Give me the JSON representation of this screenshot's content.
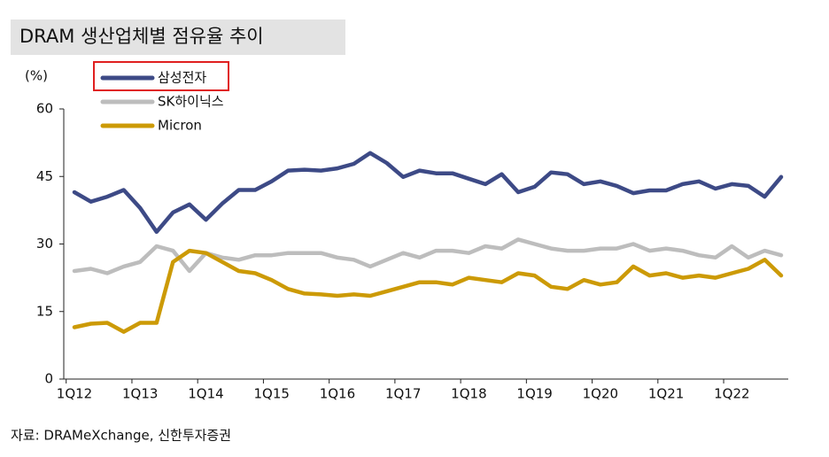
{
  "chart_data": {
    "type": "line",
    "title": "DRAM 생산업체별 점유율 추이",
    "y_label": "(%)",
    "source": "자료: DRAMeXchange, 신한투자증권",
    "categories": [
      "1Q12",
      null,
      null,
      null,
      "1Q13",
      null,
      null,
      null,
      "1Q14",
      null,
      null,
      null,
      "1Q15",
      null,
      null,
      null,
      "1Q16",
      null,
      null,
      null,
      "1Q17",
      null,
      null,
      null,
      "1Q18",
      null,
      null,
      null,
      "1Q19",
      null,
      null,
      null,
      "1Q20",
      null,
      null,
      null,
      "1Q21",
      null,
      null,
      null,
      "1Q22",
      null,
      null,
      null
    ],
    "series": [
      {
        "name": "삼성전자",
        "color": "#3d4a86",
        "values": [
          41.5,
          39.4,
          40.5,
          42,
          38,
          32.7,
          37,
          38.8,
          35.4,
          39,
          42,
          42,
          43.9,
          46.3,
          46.5,
          46.3,
          46.8,
          47.8,
          50.2,
          48,
          44.9,
          46.3,
          45.7,
          45.7,
          44.5,
          43.3,
          45.5,
          41.5,
          42.7,
          45.9,
          45.5,
          43.3,
          43.9,
          42.9,
          41.3,
          41.9,
          41.9,
          43.3,
          43.9,
          42.3,
          43.3,
          42.9,
          40.5,
          44.9
        ]
      },
      {
        "name": "SK하이닉스",
        "color": "#bdbdbd",
        "values": [
          24,
          24.5,
          23.5,
          25,
          26,
          29.5,
          28.5,
          24,
          28,
          27,
          26.5,
          27.5,
          27.5,
          28,
          28,
          28,
          27,
          26.5,
          25,
          26.5,
          28,
          27,
          28.5,
          28.5,
          28,
          29.5,
          29,
          31,
          30,
          29,
          28.5,
          28.5,
          29,
          29,
          30,
          28.5,
          29,
          28.5,
          27.5,
          27,
          29.5,
          27,
          28.5,
          27.5
        ]
      },
      {
        "name": "Micron",
        "color": "#cc9a06",
        "values": [
          11.5,
          12.3,
          12.5,
          10.5,
          12.5,
          12.5,
          26,
          28.5,
          28,
          26,
          24,
          23.5,
          22,
          20,
          19,
          18.8,
          18.5,
          18.8,
          18.5,
          19.5,
          20.5,
          21.5,
          21.5,
          21,
          22.5,
          22,
          21.5,
          23.5,
          23,
          20.5,
          20,
          22,
          21,
          21.5,
          25,
          23,
          23.5,
          22.5,
          23,
          22.5,
          23.5,
          24.5,
          26.5,
          23
        ]
      }
    ],
    "ylim": [
      0,
      60
    ],
    "yticks": [
      0,
      15,
      30,
      45,
      60
    ],
    "grid": false,
    "legend": "top-left"
  }
}
